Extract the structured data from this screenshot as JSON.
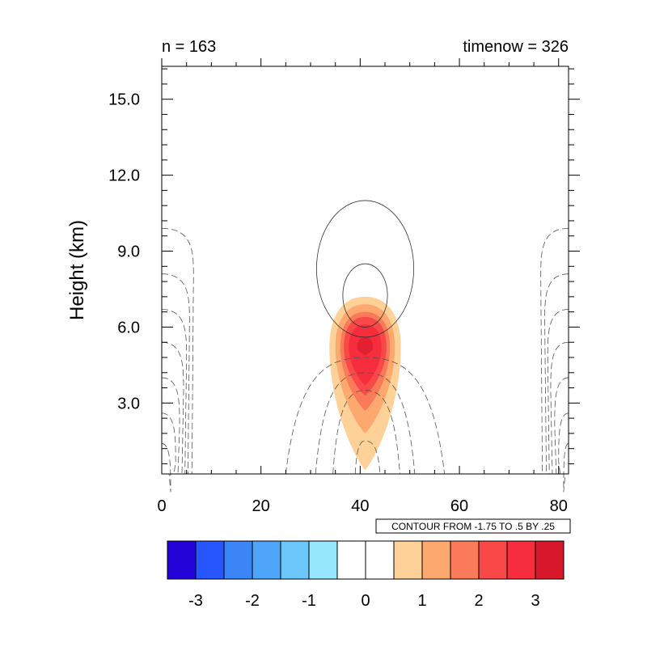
{
  "header": {
    "left_text": "n = 163",
    "right_text": "timenow = 326"
  },
  "contour_info": "CONTOUR FROM -1.75 TO .5 BY .25",
  "chart_data": {
    "type": "contour",
    "title": "",
    "xlabel": "",
    "ylabel": "Height (km)",
    "xlim": [
      0,
      82
    ],
    "ylim": [
      0.2,
      16.3
    ],
    "x_ticks": [
      "0",
      "20",
      "40",
      "60",
      "80"
    ],
    "y_ticks": [
      "3.0",
      "6.0",
      "9.0",
      "12.0",
      "15.0"
    ],
    "x_tick_values": [
      0,
      20,
      40,
      60,
      80
    ],
    "y_tick_values": [
      3.0,
      6.0,
      9.0,
      12.0,
      15.0
    ],
    "filled_field": {
      "description": "shaded anomaly centered near x=41, z=5.2 km",
      "center": [
        41,
        5.2
      ],
      "levels": [
        {
          "value": 0.5,
          "color": "#fed198",
          "half_width": 7.2,
          "top": 7.2,
          "bottom": 0.35
        },
        {
          "value": 1.0,
          "color": "#fda86e",
          "half_width": 6.0,
          "top": 6.9,
          "bottom": 1.8
        },
        {
          "value": 1.5,
          "color": "#fa7a5a",
          "half_width": 5.0,
          "top": 6.6,
          "bottom": 2.7
        },
        {
          "value": 2.0,
          "color": "#f94848",
          "half_width": 4.3,
          "top": 6.4,
          "bottom": 3.3
        },
        {
          "value": 2.5,
          "color": "#f52d3c",
          "half_width": 3.3,
          "top": 6.1,
          "bottom": 3.7
        },
        {
          "value": 3.0,
          "color": "#e2202f",
          "half_width": 1.6,
          "top": 5.6,
          "bottom": 4.9
        }
      ]
    },
    "line_contours": {
      "positive": [
        {
          "center": [
            41,
            8.3
          ],
          "half_width": 9.8,
          "top": 11.0,
          "bottom": 5.6
        },
        {
          "center": [
            41,
            7.3
          ],
          "half_width": 4.5,
          "top": 8.5,
          "bottom": 6.0
        }
      ],
      "negative_center_bottoms": [
        1.5,
        3.5,
        4.2,
        4.8
      ],
      "negative_center_base_x": [
        [
          39,
          44
        ],
        [
          34.5,
          48
        ],
        [
          31,
          51
        ],
        [
          25,
          57
        ]
      ]
    },
    "colorbar": {
      "colors": [
        "#2303d8",
        "#2755fe",
        "#3b85f7",
        "#4fa5f9",
        "#6cc6fa",
        "#96e6fe",
        "#ffffff",
        "#ffffff",
        "#fed198",
        "#fda86e",
        "#fa7a5a",
        "#f94848",
        "#f52d3c",
        "#d7172a"
      ],
      "labels": [
        "-3",
        "-2",
        "-1",
        "0",
        "1",
        "2",
        "3"
      ]
    }
  }
}
